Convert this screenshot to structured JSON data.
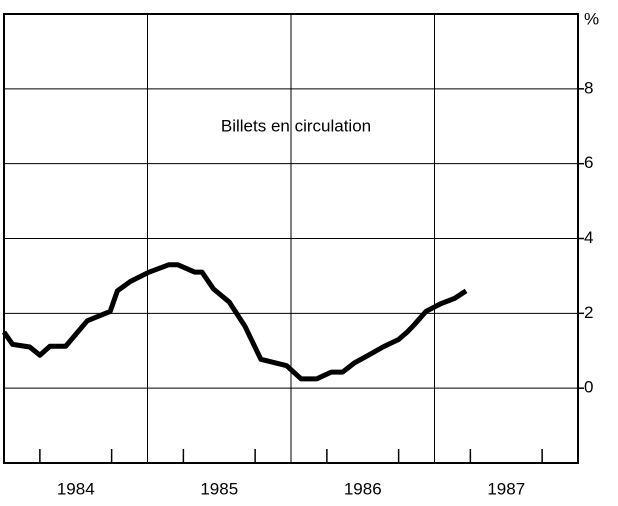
{
  "chart_data": {
    "type": "line",
    "annotation": "Billets en circulation",
    "y_axis_label": "%",
    "x": [
      1984.0,
      1984.06,
      1984.18,
      1984.25,
      1984.32,
      1984.43,
      1984.58,
      1984.74,
      1984.79,
      1984.88,
      1985.01,
      1985.15,
      1985.21,
      1985.33,
      1985.38,
      1985.46,
      1985.57,
      1985.68,
      1985.79,
      1985.97,
      1986.07,
      1986.18,
      1986.28,
      1986.36,
      1986.44,
      1986.54,
      1986.64,
      1986.75,
      1986.81,
      1986.86,
      1986.94,
      1987.04,
      1987.14,
      1987.22
    ],
    "series": [
      {
        "color": "#000000",
        "values": [
          1.5,
          1.17,
          1.1,
          0.88,
          1.12,
          1.12,
          1.8,
          2.05,
          2.6,
          2.85,
          3.1,
          3.3,
          3.3,
          3.1,
          3.1,
          2.65,
          2.3,
          1.65,
          0.77,
          0.6,
          0.25,
          0.25,
          0.43,
          0.43,
          0.67,
          0.88,
          1.1,
          1.3,
          1.5,
          1.7,
          2.05,
          2.25,
          2.4,
          2.6
        ]
      }
    ],
    "xlim": [
      1984,
      1988
    ],
    "ylim": [
      -2,
      10
    ],
    "xticks": [
      {
        "value": 1984.5,
        "label": "1984"
      },
      {
        "value": 1985.5,
        "label": "1985"
      },
      {
        "value": 1986.5,
        "label": "1986"
      },
      {
        "value": 1987.5,
        "label": "1987"
      }
    ],
    "xgrid": [
      1985,
      1986,
      1987
    ],
    "xminor": [
      1984.25,
      1984.75,
      1985.25,
      1985.75,
      1986.25,
      1986.75,
      1987.25,
      1987.75
    ],
    "yticks": [
      0,
      2,
      4,
      6,
      8
    ],
    "grid": true
  }
}
